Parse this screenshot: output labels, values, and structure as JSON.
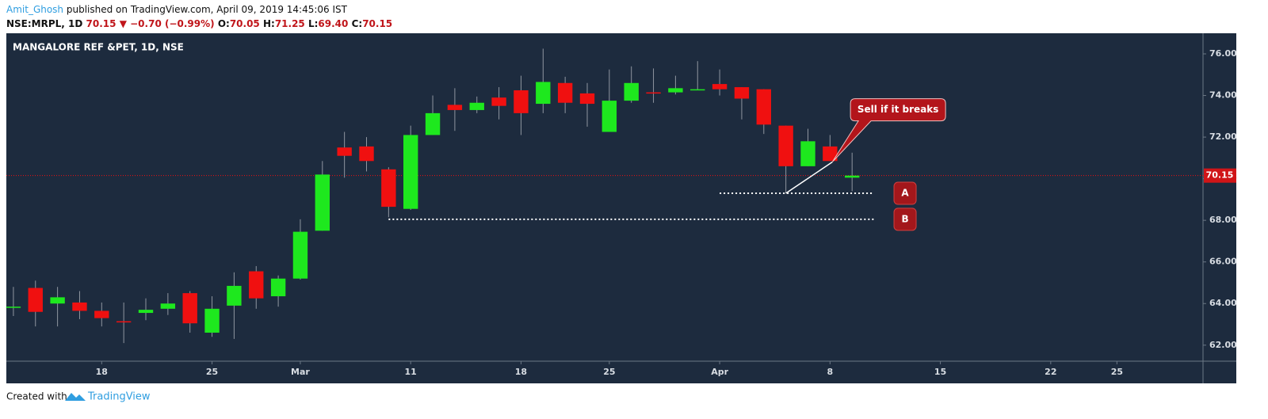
{
  "header": {
    "author": "Amit_Ghosh",
    "published": "published on TradingView.com, April 09, 2019 14:45:06 IST",
    "symbol": "NSE:MRPL, 1D",
    "price": "70.15",
    "arrow": "▼",
    "change": "−0.70 (−0.99%)",
    "ohlc": [
      {
        "key": "O:",
        "value": "70.05"
      },
      {
        "key": "H:",
        "value": "71.25"
      },
      {
        "key": "L:",
        "value": "69.40"
      },
      {
        "key": "C:",
        "value": "70.15"
      }
    ]
  },
  "chart_data": {
    "type": "candlestick",
    "title": "MANGALORE REF &PET, 1D, NSE",
    "up_color": "#1ee81e",
    "down_color": "#f01010",
    "x": [
      0,
      1,
      2,
      3,
      4,
      5,
      6,
      7,
      8,
      9,
      10,
      11,
      12,
      13,
      14,
      15,
      16,
      17,
      18,
      19,
      20,
      21,
      22,
      23,
      24,
      25,
      26,
      27,
      28,
      29,
      30,
      31,
      32,
      33,
      34,
      35,
      36,
      37,
      38
    ],
    "open": [
      63.8,
      64.75,
      64.0,
      64.05,
      63.65,
      63.15,
      63.55,
      63.75,
      64.5,
      62.6,
      63.9,
      65.55,
      64.35,
      65.2,
      67.5,
      71.5,
      71.55,
      70.45,
      68.55,
      72.1,
      73.55,
      73.3,
      73.9,
      74.25,
      73.6,
      74.6,
      74.1,
      72.25,
      73.75,
      74.15,
      74.15,
      74.25,
      74.55,
      74.4,
      74.3,
      72.55,
      70.6,
      71.55,
      70.05
    ],
    "high": [
      64.8,
      65.1,
      64.8,
      64.6,
      64.05,
      64.05,
      64.25,
      64.5,
      64.6,
      64.35,
      65.5,
      65.8,
      65.35,
      68.05,
      70.85,
      72.25,
      72.0,
      70.55,
      72.55,
      74.0,
      74.35,
      73.95,
      74.4,
      74.95,
      76.25,
      74.9,
      74.6,
      75.25,
      75.4,
      75.3,
      74.95,
      75.65,
      75.25,
      74.4,
      74.3,
      72.55,
      72.4,
      72.1,
      71.25
    ],
    "low": [
      63.4,
      62.9,
      62.9,
      63.25,
      62.9,
      62.1,
      63.2,
      63.45,
      62.6,
      62.4,
      62.3,
      63.75,
      63.85,
      65.15,
      67.5,
      70.05,
      70.35,
      68.15,
      68.5,
      72.1,
      72.3,
      73.15,
      72.85,
      72.1,
      73.15,
      73.15,
      72.5,
      72.25,
      73.65,
      73.65,
      74.05,
      74.25,
      74.0,
      72.85,
      72.15,
      69.3,
      70.6,
      70.85,
      69.4
    ],
    "close": [
      63.85,
      63.6,
      64.3,
      63.65,
      63.3,
      63.1,
      63.7,
      64.0,
      63.05,
      63.75,
      64.85,
      64.25,
      65.2,
      67.45,
      70.2,
      71.1,
      70.85,
      68.65,
      72.1,
      73.15,
      73.3,
      73.65,
      73.5,
      73.15,
      74.65,
      73.65,
      73.6,
      73.75,
      74.6,
      74.1,
      74.35,
      74.3,
      74.3,
      73.85,
      72.6,
      70.6,
      71.8,
      70.85,
      70.15
    ],
    "xlim": [
      -0.32,
      53.9
    ],
    "xticks": [
      {
        "value": 4,
        "label": "18"
      },
      {
        "value": 9,
        "label": "25"
      },
      {
        "value": 13,
        "label": "Mar"
      },
      {
        "value": 18,
        "label": "11"
      },
      {
        "value": 23,
        "label": "18"
      },
      {
        "value": 27,
        "label": "25"
      },
      {
        "value": 32,
        "label": "Apr"
      },
      {
        "value": 37,
        "label": "8"
      },
      {
        "value": 42,
        "label": "15"
      },
      {
        "value": 47,
        "label": "22"
      },
      {
        "value": 50,
        "label": "25"
      }
    ],
    "ylim": [
      61.23,
      76.99
    ],
    "yticks": [
      {
        "value": 62,
        "label": "62.00"
      },
      {
        "value": 64,
        "label": "64.00"
      },
      {
        "value": 66,
        "label": "66.00"
      },
      {
        "value": 68,
        "label": "68.00"
      },
      {
        "value": 70,
        "label": "70.00"
      },
      {
        "value": 72,
        "label": "72.00"
      },
      {
        "value": 74,
        "label": "74.00"
      },
      {
        "value": 76,
        "label": "76.00"
      }
    ],
    "last_price": 70.15,
    "levels": [
      {
        "label": "A",
        "value": 69.3,
        "x_from": 32,
        "x_to": 39
      },
      {
        "label": "B",
        "value": 68.05,
        "x_from": 17,
        "x_to": 39
      }
    ],
    "trendline": {
      "x": [
        35,
        37.1
      ],
      "y": [
        69.3,
        70.8
      ]
    },
    "callout": {
      "text": "Sell if it breaks",
      "x": 37.1,
      "y": 70.8
    }
  },
  "footer": {
    "created": "Created with",
    "brand": "TradingView"
  }
}
